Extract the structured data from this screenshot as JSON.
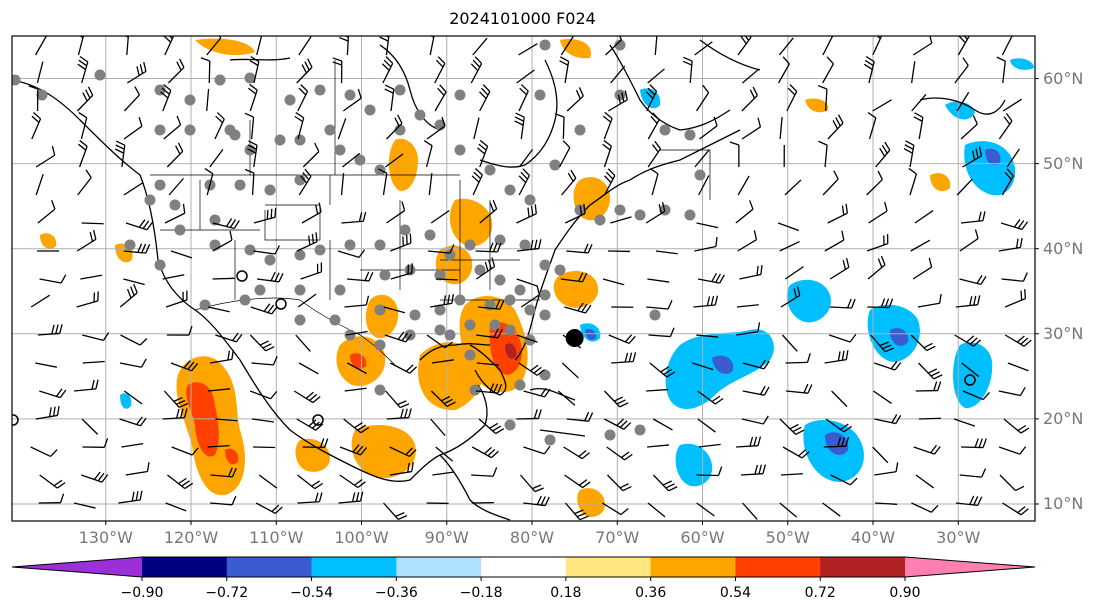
{
  "title": "2024101000 F024",
  "lat_labels": [
    {
      "deg": 60,
      "text": "60°N"
    },
    {
      "deg": 50,
      "text": "50°N"
    },
    {
      "deg": 40,
      "text": "40°N"
    },
    {
      "deg": 30,
      "text": "30°N"
    },
    {
      "deg": 20,
      "text": "20°N"
    },
    {
      "deg": 10,
      "text": "10°N"
    }
  ],
  "lon_labels": [
    {
      "deg": -130,
      "text": "130°W"
    },
    {
      "deg": -120,
      "text": "120°W"
    },
    {
      "deg": -110,
      "text": "110°W"
    },
    {
      "deg": -100,
      "text": "100°W"
    },
    {
      "deg": -90,
      "text": "90°W"
    },
    {
      "deg": -80,
      "text": "80°W"
    },
    {
      "deg": -70,
      "text": "70°W"
    },
    {
      "deg": -60,
      "text": "60°W"
    },
    {
      "deg": -50,
      "text": "50°W"
    },
    {
      "deg": -40,
      "text": "40°W"
    },
    {
      "deg": -30,
      "text": "30°W"
    }
  ],
  "map_extent": {
    "lon_min": -141,
    "lon_max": -21,
    "lat_min": 8,
    "lat_max": 65
  },
  "colorbar": {
    "under_color": "#9b30d9",
    "over_color": "#ff80b0",
    "colors": [
      "#9b30d9",
      "#000080",
      "#3b5bd0",
      "#00bfff",
      "#b0e0ff",
      "#ffffff",
      "#ffe680",
      "#ffa500",
      "#ff4000",
      "#b22222",
      "#ff80b0"
    ],
    "ticks": [
      "−0.90",
      "−0.72",
      "−0.54",
      "−0.36",
      "−0.18",
      "0.18",
      "0.36",
      "0.54",
      "0.72",
      "0.90"
    ]
  },
  "field_colors": {
    "orange": "#ffa500",
    "red": "#ff4000",
    "darkred": "#b22222",
    "lightblue": "#00bfff",
    "blue": "#3b5bd0",
    "yellow": "#ffe680"
  },
  "hurricane_marker": {
    "lon": -75,
    "lat": 29.5
  }
}
